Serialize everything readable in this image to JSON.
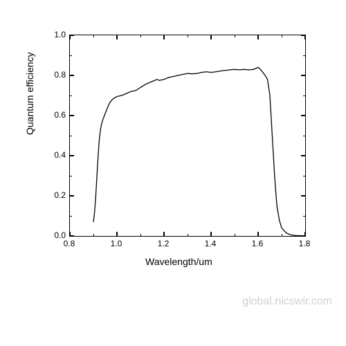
{
  "chart": {
    "type": "line",
    "xlabel": "Wavelength/um",
    "ylabel": "Quantum efficiency",
    "label_fontsize": 14,
    "tick_fontsize": 12,
    "xlim": [
      0.8,
      1.8
    ],
    "ylim": [
      0.0,
      1.0
    ],
    "xticks": [
      0.8,
      1.0,
      1.2,
      1.4,
      1.6,
      1.8
    ],
    "yticks": [
      0.0,
      0.2,
      0.4,
      0.6,
      0.8,
      1.0
    ],
    "xtick_minor_step": 0.1,
    "ytick_minor_step": 0.1,
    "line_color": "#000000",
    "line_width": 1.3,
    "background_color": "#ffffff",
    "border_color": "#000000",
    "data": [
      [
        0.9,
        0.07
      ],
      [
        0.905,
        0.12
      ],
      [
        0.91,
        0.2
      ],
      [
        0.915,
        0.3
      ],
      [
        0.92,
        0.4
      ],
      [
        0.925,
        0.48
      ],
      [
        0.93,
        0.53
      ],
      [
        0.935,
        0.56
      ],
      [
        0.94,
        0.58
      ],
      [
        0.95,
        0.61
      ],
      [
        0.96,
        0.64
      ],
      [
        0.97,
        0.665
      ],
      [
        0.98,
        0.68
      ],
      [
        0.99,
        0.688
      ],
      [
        1.0,
        0.695
      ],
      [
        1.02,
        0.7
      ],
      [
        1.04,
        0.71
      ],
      [
        1.06,
        0.72
      ],
      [
        1.08,
        0.725
      ],
      [
        1.1,
        0.74
      ],
      [
        1.12,
        0.755
      ],
      [
        1.14,
        0.765
      ],
      [
        1.16,
        0.775
      ],
      [
        1.17,
        0.78
      ],
      [
        1.18,
        0.775
      ],
      [
        1.2,
        0.78
      ],
      [
        1.22,
        0.79
      ],
      [
        1.24,
        0.795
      ],
      [
        1.26,
        0.8
      ],
      [
        1.28,
        0.805
      ],
      [
        1.3,
        0.81
      ],
      [
        1.32,
        0.808
      ],
      [
        1.34,
        0.81
      ],
      [
        1.36,
        0.815
      ],
      [
        1.38,
        0.818
      ],
      [
        1.4,
        0.815
      ],
      [
        1.42,
        0.818
      ],
      [
        1.44,
        0.822
      ],
      [
        1.46,
        0.825
      ],
      [
        1.48,
        0.828
      ],
      [
        1.5,
        0.83
      ],
      [
        1.52,
        0.828
      ],
      [
        1.54,
        0.83
      ],
      [
        1.56,
        0.828
      ],
      [
        1.58,
        0.83
      ],
      [
        1.6,
        0.84
      ],
      [
        1.61,
        0.83
      ],
      [
        1.62,
        0.815
      ],
      [
        1.63,
        0.8
      ],
      [
        1.64,
        0.78
      ],
      [
        1.65,
        0.7
      ],
      [
        1.655,
        0.6
      ],
      [
        1.66,
        0.5
      ],
      [
        1.665,
        0.4
      ],
      [
        1.67,
        0.3
      ],
      [
        1.675,
        0.22
      ],
      [
        1.68,
        0.15
      ],
      [
        1.69,
        0.08
      ],
      [
        1.7,
        0.04
      ],
      [
        1.72,
        0.015
      ],
      [
        1.74,
        0.005
      ],
      [
        1.76,
        0.002
      ],
      [
        1.78,
        0.001
      ],
      [
        1.8,
        0.0
      ]
    ]
  },
  "watermark": "global.nicswir.com"
}
